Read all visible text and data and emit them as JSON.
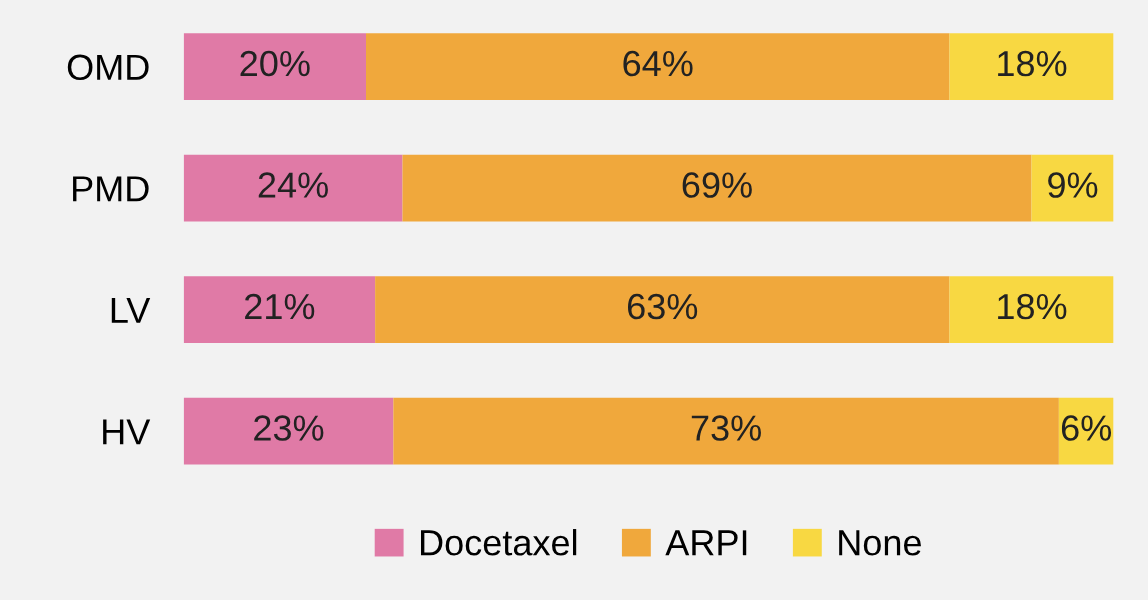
{
  "chart_data": {
    "type": "bar",
    "orientation": "horizontal",
    "stacked": true,
    "categories": [
      "OMD",
      "PMD",
      "LV",
      "HV"
    ],
    "series": [
      {
        "name": "Docetaxel",
        "color": "#e07aa6",
        "values": [
          20,
          24,
          21,
          23
        ],
        "value_labels": [
          "20%",
          "24%",
          "21%",
          "23%"
        ]
      },
      {
        "name": "ARPI",
        "color": "#f0a83c",
        "values": [
          64,
          69,
          63,
          73
        ],
        "value_labels": [
          "64%",
          "69%",
          "63%",
          "73%"
        ]
      },
      {
        "name": "None",
        "color": "#f8d842",
        "values": [
          18,
          9,
          18,
          6
        ],
        "value_labels": [
          "18%",
          "9%",
          "18%",
          "6%"
        ]
      }
    ],
    "legend": "bottom"
  }
}
